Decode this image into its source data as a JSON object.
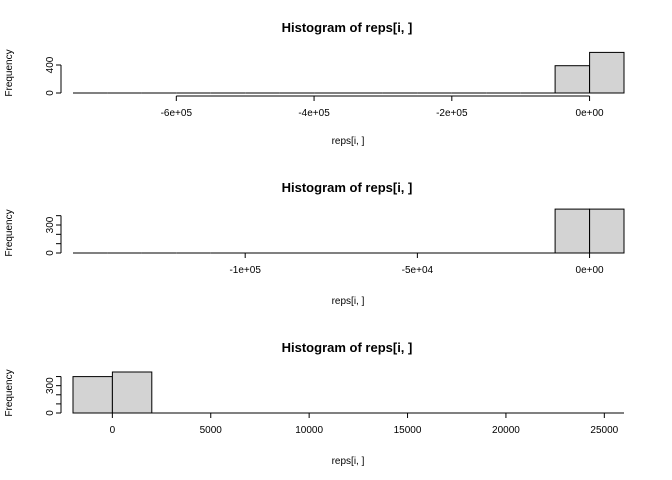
{
  "chart_data": [
    {
      "type": "bar",
      "subtype": "histogram",
      "title": "Histogram of reps[i, ]",
      "xlabel": "reps[i, ]",
      "ylabel": "Frequency",
      "bar_color": "#d3d3d3",
      "x_ticks": [
        -600000,
        -400000,
        -200000,
        0
      ],
      "x_tick_labels": [
        "-6e+05",
        "-4e+05",
        "-2e+05",
        "0e+00"
      ],
      "y_ticks": [
        0,
        400
      ],
      "y_tick_labels": [
        "0",
        "400"
      ],
      "ylim": [
        0,
        600
      ],
      "bins": [
        {
          "start": -750000,
          "end": -700000,
          "count": 0
        },
        {
          "start": -700000,
          "end": -650000,
          "count": 0
        },
        {
          "start": -650000,
          "end": -600000,
          "count": 0
        },
        {
          "start": -600000,
          "end": -550000,
          "count": 0
        },
        {
          "start": -550000,
          "end": -500000,
          "count": 0
        },
        {
          "start": -500000,
          "end": -450000,
          "count": 0
        },
        {
          "start": -450000,
          "end": -400000,
          "count": 0
        },
        {
          "start": -400000,
          "end": -350000,
          "count": 0
        },
        {
          "start": -350000,
          "end": -300000,
          "count": 0
        },
        {
          "start": -300000,
          "end": -250000,
          "count": 0
        },
        {
          "start": -250000,
          "end": -200000,
          "count": 0
        },
        {
          "start": -200000,
          "end": -150000,
          "count": 0
        },
        {
          "start": -150000,
          "end": -100000,
          "count": 0
        },
        {
          "start": -100000,
          "end": -50000,
          "count": 0
        },
        {
          "start": -50000,
          "end": 0,
          "count": 390
        },
        {
          "start": 0,
          "end": 50000,
          "count": 580
        }
      ]
    },
    {
      "type": "bar",
      "subtype": "histogram",
      "title": "Histogram of reps[i, ]",
      "xlabel": "reps[i, ]",
      "ylabel": "Frequency",
      "bar_color": "#d3d3d3",
      "x_ticks": [
        -100000,
        -50000,
        0
      ],
      "x_tick_labels": [
        "-1e+05",
        "-5e+04",
        "0e+00"
      ],
      "y_ticks": [
        0,
        100,
        200,
        300,
        400
      ],
      "y_tick_labels": [
        "0",
        "300"
      ],
      "ylim": [
        0,
        450
      ],
      "bins": [
        {
          "start": -150000,
          "end": -140000,
          "count": 0
        },
        {
          "start": -140000,
          "end": -130000,
          "count": 0
        },
        {
          "start": -130000,
          "end": -120000,
          "count": 0
        },
        {
          "start": -120000,
          "end": -110000,
          "count": 0
        },
        {
          "start": -110000,
          "end": -100000,
          "count": 0
        },
        {
          "start": -100000,
          "end": -90000,
          "count": 0
        },
        {
          "start": -90000,
          "end": -80000,
          "count": 0
        },
        {
          "start": -80000,
          "end": -70000,
          "count": 0
        },
        {
          "start": -70000,
          "end": -60000,
          "count": 0
        },
        {
          "start": -60000,
          "end": -50000,
          "count": 0
        },
        {
          "start": -50000,
          "end": -40000,
          "count": 0
        },
        {
          "start": -40000,
          "end": -30000,
          "count": 0
        },
        {
          "start": -30000,
          "end": -20000,
          "count": 0
        },
        {
          "start": -20000,
          "end": -10000,
          "count": 0
        },
        {
          "start": -10000,
          "end": 0,
          "count": 470
        },
        {
          "start": 0,
          "end": 10000,
          "count": 470
        }
      ]
    },
    {
      "type": "bar",
      "subtype": "histogram",
      "title": "Histogram of reps[i, ]",
      "xlabel": "reps[i, ]",
      "ylabel": "Frequency",
      "bar_color": "#d3d3d3",
      "x_ticks": [
        0,
        5000,
        10000,
        15000,
        20000,
        25000
      ],
      "x_tick_labels": [
        "0",
        "5000",
        "10000",
        "15000",
        "20000",
        "25000"
      ],
      "y_ticks": [
        0,
        100,
        200,
        300,
        400
      ],
      "y_tick_labels": [
        "0",
        "300"
      ],
      "ylim": [
        0,
        450
      ],
      "bins": [
        {
          "start": -2000,
          "end": 0,
          "count": 400
        },
        {
          "start": 0,
          "end": 2000,
          "count": 450
        },
        {
          "start": 2000,
          "end": 4000,
          "count": 0
        },
        {
          "start": 4000,
          "end": 6000,
          "count": 0
        },
        {
          "start": 6000,
          "end": 8000,
          "count": 0
        },
        {
          "start": 8000,
          "end": 10000,
          "count": 0
        },
        {
          "start": 10000,
          "end": 12000,
          "count": 0
        },
        {
          "start": 12000,
          "end": 14000,
          "count": 0
        },
        {
          "start": 14000,
          "end": 16000,
          "count": 0
        },
        {
          "start": 16000,
          "end": 18000,
          "count": 0
        },
        {
          "start": 18000,
          "end": 20000,
          "count": 0
        },
        {
          "start": 20000,
          "end": 22000,
          "count": 0
        },
        {
          "start": 22000,
          "end": 24000,
          "count": 0
        },
        {
          "start": 24000,
          "end": 26000,
          "count": 0
        }
      ]
    }
  ]
}
